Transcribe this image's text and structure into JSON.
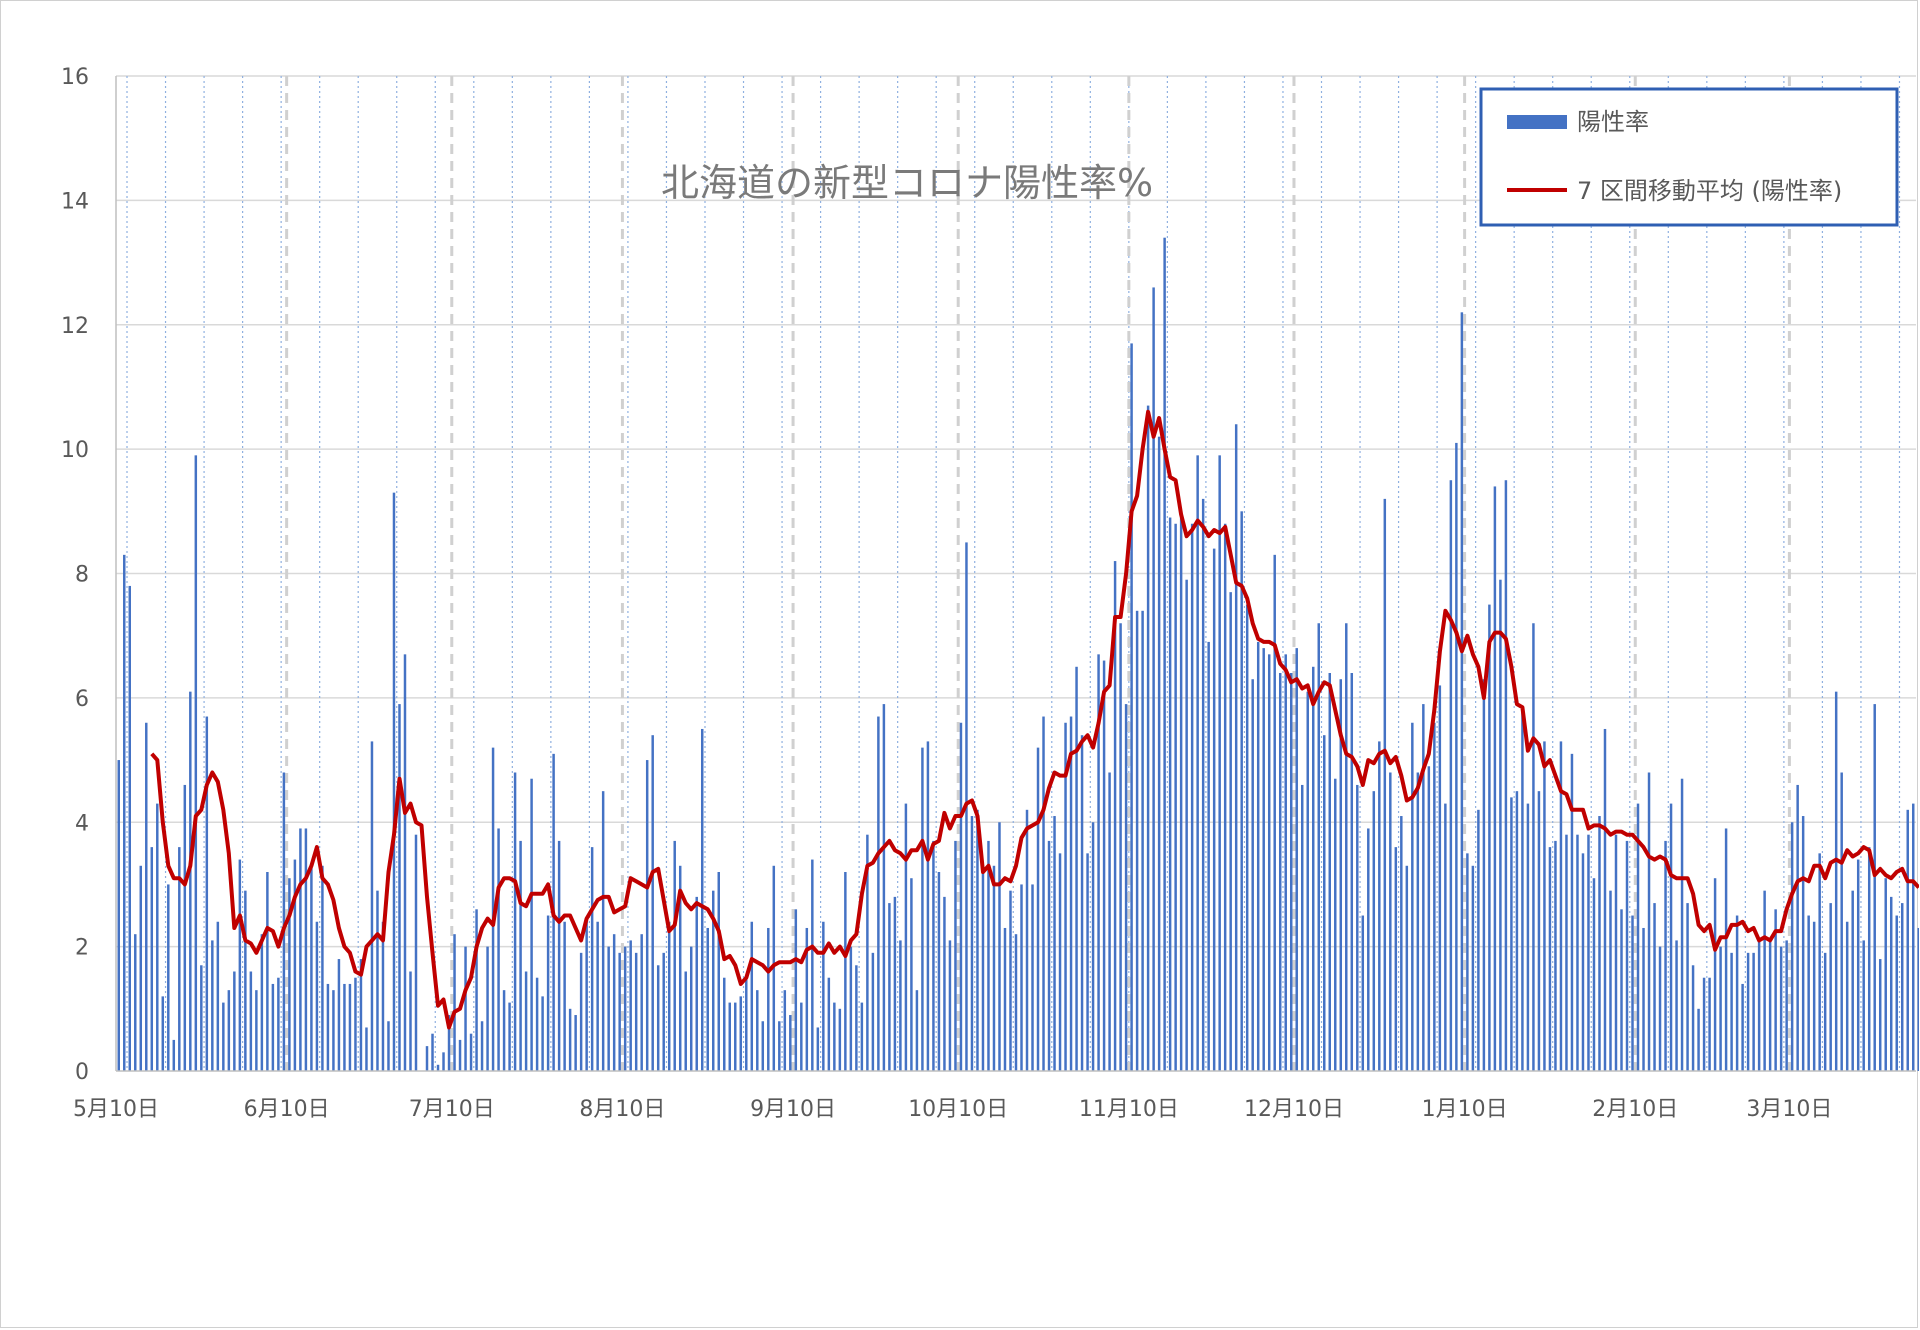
{
  "chart_data": {
    "type": "bar",
    "title": "北海道の新型コロナ陽性率%",
    "xlabel": "",
    "ylabel": "",
    "ylim": [
      0,
      16
    ],
    "y_ticks": [
      "0",
      "2",
      "4",
      "6",
      "8",
      "10",
      "12",
      "14",
      "16"
    ],
    "x_tick_labels": [
      "5月10日",
      "6月10日",
      "7月10日",
      "8月10日",
      "9月10日",
      "10月10日",
      "11月10日",
      "12月10日",
      "1月10日",
      "2月10日",
      "3月10日"
    ],
    "month_boundary_days": [
      0,
      31,
      61,
      92,
      123,
      153,
      184,
      214,
      245,
      276,
      304
    ],
    "x_day_range": [
      0,
      327
    ],
    "grid": true,
    "legend_position": "top-right",
    "colors": {
      "bar": "#4472c4",
      "line": "#c00000",
      "legend_border": "#2f5fb3",
      "grid": "#d9d9d9"
    },
    "series": [
      {
        "name": "陽性率",
        "type": "bar",
        "values": [
          5.0,
          8.3,
          7.8,
          2.2,
          3.3,
          5.6,
          3.6,
          4.3,
          1.2,
          3.0,
          0.5,
          3.6,
          4.6,
          6.1,
          9.9,
          1.7,
          5.7,
          2.1,
          2.4,
          1.1,
          1.3,
          1.6,
          3.4,
          2.9,
          1.6,
          1.3,
          2.2,
          3.2,
          1.4,
          1.5,
          4.8,
          3.1,
          3.4,
          3.9,
          3.9,
          3.3,
          2.4,
          3.3,
          1.4,
          1.3,
          1.8,
          1.4,
          1.4,
          1.5,
          1.8,
          0.7,
          5.3,
          2.9,
          2.4,
          0.8,
          9.3,
          5.9,
          6.7,
          1.6,
          3.8,
          0.0,
          0.4,
          0.6,
          0.1,
          0.3,
          0.9,
          2.2,
          0.5,
          2.0,
          0.6,
          2.6,
          0.8,
          2.0,
          5.2,
          3.9,
          1.3,
          1.1,
          4.8,
          3.7,
          1.6,
          4.7,
          1.5,
          1.2,
          2.5,
          5.1,
          3.7,
          2.4,
          1.0,
          0.9,
          1.9,
          2.4,
          3.6,
          2.4,
          4.5,
          2.0,
          2.2,
          1.9,
          2.0,
          2.1,
          1.9,
          2.2,
          5.0,
          5.4,
          1.7,
          1.9,
          2.4,
          3.7,
          3.3,
          1.6,
          2.0,
          2.8,
          5.5,
          2.3,
          2.9,
          3.2,
          1.5,
          1.1,
          1.1,
          1.2,
          1.5,
          2.4,
          1.3,
          0.8,
          2.3,
          3.3,
          0.8,
          1.3,
          0.9,
          2.6,
          1.1,
          2.3,
          3.4,
          0.7,
          2.4,
          1.5,
          1.1,
          1.0,
          3.2,
          2.0,
          1.7,
          1.1,
          3.8,
          1.9,
          5.7,
          5.9,
          2.7,
          2.8,
          2.1,
          4.3,
          3.1,
          1.3,
          5.2,
          5.3,
          3.7,
          3.2,
          2.8,
          2.1,
          3.7,
          5.6,
          8.5,
          4.1,
          4.2,
          3.2,
          3.7,
          3.3,
          4.0,
          2.3,
          2.9,
          2.2,
          3.0,
          4.2,
          3.0,
          5.2,
          5.7,
          3.7,
          4.1,
          3.5,
          5.6,
          5.7,
          6.5,
          5.4,
          3.5,
          4.0,
          6.7,
          6.6,
          4.8,
          8.2,
          7.2,
          5.9,
          11.7,
          7.4,
          7.4,
          10.7,
          12.6,
          10.2,
          13.4,
          8.9,
          8.8,
          8.9,
          7.9,
          8.8,
          9.9,
          9.2,
          6.9,
          8.4,
          9.9,
          8.8,
          7.7,
          10.4,
          9.0,
          7.5,
          6.3,
          6.9,
          6.8,
          6.7,
          8.3,
          6.4,
          6.7,
          6.4,
          6.8,
          4.6,
          6.1,
          6.5,
          7.2,
          5.4,
          6.4,
          4.7,
          6.3,
          7.2,
          6.4,
          4.6,
          2.5,
          3.9,
          4.5,
          5.3,
          9.2,
          4.8,
          3.6,
          4.1,
          3.3,
          5.6,
          4.8,
          5.9,
          4.9,
          5.6,
          6.2,
          4.3,
          9.5,
          10.1,
          12.2,
          3.5,
          3.3,
          4.2,
          6.3,
          7.5,
          9.4,
          7.9,
          9.5,
          4.4,
          4.5,
          5.8,
          4.3,
          7.2,
          4.5,
          5.3,
          3.6,
          3.7,
          5.3,
          3.8,
          5.1,
          3.8,
          3.5,
          3.8,
          3.1,
          4.1,
          5.5,
          2.9,
          3.8,
          2.6,
          3.7,
          2.5,
          4.3,
          2.3,
          4.8,
          2.7,
          2.0,
          3.7,
          4.3,
          2.1,
          4.7,
          2.7,
          1.7,
          1.0,
          1.5,
          1.5,
          3.1,
          2.0,
          3.9,
          1.9,
          2.5,
          1.4,
          1.9,
          1.9,
          2.1,
          2.9,
          2.1,
          2.6,
          2.0,
          2.1,
          4.0,
          4.6,
          4.1,
          2.5,
          2.4,
          3.5,
          1.9,
          2.7,
          6.1,
          4.8,
          2.4,
          2.9,
          3.4,
          2.1,
          3.6,
          5.9,
          1.8,
          3.1,
          2.8,
          2.5,
          2.7,
          4.2,
          4.3,
          2.3,
          2.2,
          2.3
        ]
      },
      {
        "name": "7 区間移動平均 (陽性率)",
        "type": "line",
        "start_day": 6,
        "values": [
          5.1,
          5.0,
          4.0,
          3.3,
          3.1,
          3.1,
          3.0,
          3.3,
          4.1,
          4.2,
          4.6,
          4.8,
          4.65,
          4.2,
          3.5,
          2.3,
          2.5,
          2.1,
          2.05,
          1.9,
          2.1,
          2.3,
          2.25,
          2.0,
          2.3,
          2.5,
          2.8,
          3.0,
          3.1,
          3.3,
          3.6,
          3.1,
          3.0,
          2.75,
          2.3,
          2.0,
          1.9,
          1.6,
          1.55,
          2.0,
          2.1,
          2.2,
          2.1,
          3.2,
          3.8,
          4.7,
          4.15,
          4.3,
          4.0,
          3.95,
          2.8,
          1.9,
          1.05,
          1.15,
          0.7,
          0.95,
          1.0,
          1.3,
          1.5,
          2.0,
          2.3,
          2.45,
          2.35,
          2.95,
          3.1,
          3.1,
          3.05,
          2.7,
          2.65,
          2.85,
          2.85,
          2.85,
          3.0,
          2.5,
          2.4,
          2.5,
          2.5,
          2.3,
          2.1,
          2.45,
          2.6,
          2.75,
          2.8,
          2.8,
          2.55,
          2.6,
          2.65,
          3.1,
          3.05,
          3.0,
          2.95,
          3.2,
          3.25,
          2.75,
          2.25,
          2.35,
          2.9,
          2.7,
          2.6,
          2.7,
          2.65,
          2.6,
          2.45,
          2.25,
          1.8,
          1.85,
          1.7,
          1.4,
          1.5,
          1.8,
          1.75,
          1.7,
          1.6,
          1.7,
          1.75,
          1.75,
          1.75,
          1.8,
          1.75,
          1.95,
          2.0,
          1.9,
          1.9,
          2.05,
          1.9,
          2.0,
          1.85,
          2.1,
          2.2,
          2.85,
          3.3,
          3.35,
          3.5,
          3.6,
          3.7,
          3.55,
          3.5,
          3.4,
          3.55,
          3.55,
          3.7,
          3.4,
          3.65,
          3.7,
          4.15,
          3.9,
          4.1,
          4.1,
          4.3,
          4.35,
          4.1,
          3.2,
          3.3,
          3.0,
          3.0,
          3.1,
          3.05,
          3.3,
          3.75,
          3.9,
          3.95,
          4.0,
          4.2,
          4.55,
          4.8,
          4.75,
          4.75,
          5.1,
          5.15,
          5.3,
          5.4,
          5.2,
          5.6,
          6.1,
          6.2,
          7.3,
          7.3,
          8.0,
          9.0,
          9.25,
          10.0,
          10.6,
          10.2,
          10.5,
          10.0,
          9.55,
          9.5,
          8.95,
          8.6,
          8.7,
          8.85,
          8.75,
          8.6,
          8.7,
          8.65,
          8.75,
          8.3,
          7.85,
          7.8,
          7.6,
          7.2,
          6.95,
          6.9,
          6.9,
          6.85,
          6.55,
          6.45,
          6.25,
          6.3,
          6.15,
          6.2,
          5.9,
          6.1,
          6.25,
          6.2,
          5.8,
          5.4,
          5.1,
          5.05,
          4.9,
          4.6,
          5.0,
          4.95,
          5.1,
          5.15,
          4.95,
          5.05,
          4.75,
          4.35,
          4.4,
          4.55,
          4.85,
          5.1,
          5.8,
          6.75,
          7.4,
          7.25,
          7.05,
          6.75,
          7.0,
          6.7,
          6.5,
          6.0,
          6.9,
          7.05,
          7.05,
          6.95,
          6.5,
          5.9,
          5.85,
          5.15,
          5.35,
          5.25,
          4.9,
          5.0,
          4.75,
          4.5,
          4.45,
          4.2,
          4.2,
          4.2,
          3.9,
          3.95,
          3.95,
          3.9,
          3.8,
          3.85,
          3.85,
          3.8,
          3.8,
          3.7,
          3.6,
          3.45,
          3.4,
          3.45,
          3.4,
          3.15,
          3.1,
          3.1,
          3.1,
          2.85,
          2.35,
          2.25,
          2.35,
          1.95,
          2.15,
          2.15,
          2.35,
          2.35,
          2.4,
          2.25,
          2.3,
          2.1,
          2.15,
          2.1,
          2.25,
          2.25,
          2.6,
          2.85,
          3.05,
          3.1,
          3.05,
          3.3,
          3.3,
          3.1,
          3.35,
          3.4,
          3.35,
          3.55,
          3.45,
          3.5,
          3.6,
          3.55,
          3.15,
          3.25,
          3.15,
          3.1,
          3.2,
          3.25,
          3.05,
          3.05,
          2.95
        ]
      }
    ],
    "legend": [
      {
        "label": "陽性率",
        "kind": "bar"
      },
      {
        "label": "7 区間移動平均 (陽性率)",
        "kind": "line"
      }
    ]
  }
}
